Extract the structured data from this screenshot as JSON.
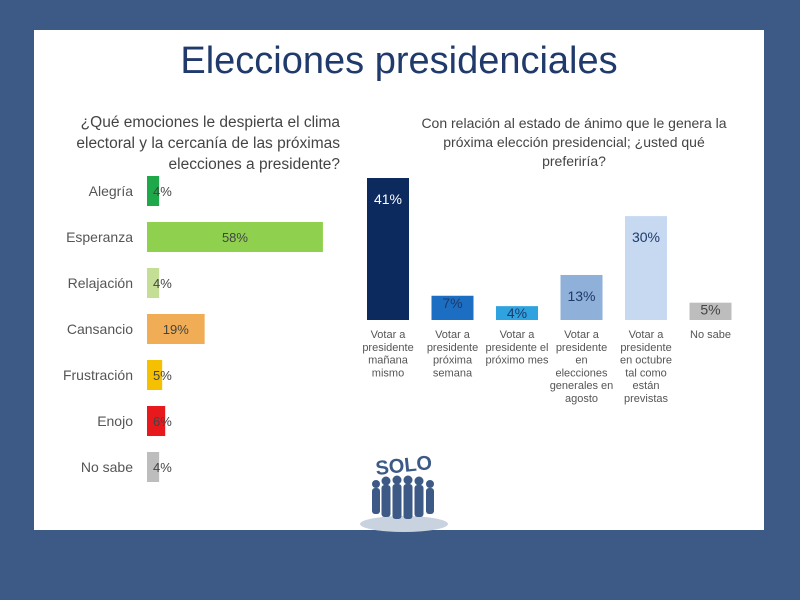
{
  "title": "Elecciones presidenciales",
  "chart_data": [
    {
      "type": "bar",
      "orientation": "horizontal",
      "title": "¿Qué emociones le despierta el clima electoral y la cercanía de las próximas elecciones a presidente?",
      "categories": [
        "Alegría",
        "Esperanza",
        "Relajación",
        "Cansancio",
        "Frustración",
        "Enojo",
        "No sabe"
      ],
      "values": [
        4,
        58,
        4,
        19,
        5,
        6,
        4
      ],
      "labels": [
        "4%",
        "58%",
        "4%",
        "19%",
        "5%",
        "6%",
        "4%"
      ],
      "colors": [
        "#1ea84a",
        "#8fd14f",
        "#c4de95",
        "#f0ad55",
        "#f5c000",
        "#e8191c",
        "#bdbdbd"
      ],
      "xlim": [
        0,
        60
      ],
      "grid": false
    },
    {
      "type": "bar",
      "orientation": "vertical",
      "title": "Con relación al estado de ánimo que le genera la próxima elección  presidencial; ¿usted qué preferiría?",
      "categories": [
        "Votar a presidente mañana mismo",
        "Votar a presidente próxima semana",
        "Votar a presidente el próximo mes",
        "Votar a presidente en elecciones generales en agosto",
        "Votar a presidente en octubre tal como están previstas",
        "No sabe"
      ],
      "category_lines": [
        [
          "Votar a",
          "presidente",
          "mañana",
          "mismo"
        ],
        [
          "Votar a",
          "presidente",
          "próxima",
          "semana"
        ],
        [
          "Votar a",
          "presidente el",
          "próximo mes"
        ],
        [
          "Votar a",
          "presidente",
          "en",
          "elecciones",
          "generales en",
          "agosto"
        ],
        [
          "Votar a",
          "presidente",
          "en octubre",
          "tal como",
          "están",
          "previstas"
        ],
        [
          "No sabe"
        ]
      ],
      "values": [
        41,
        7,
        4,
        13,
        30,
        5
      ],
      "labels": [
        "41%",
        "7%",
        "4%",
        "13%",
        "30%",
        "5%"
      ],
      "colors": [
        "#0d2a5e",
        "#1b6ec2",
        "#2ea3e0",
        "#8fb0d9",
        "#c6d9f1",
        "#bdbdbd"
      ],
      "label_colors": [
        "#ffffff",
        "#1f3a6b",
        "#1f3a6b",
        "#1f3a6b",
        "#1f3a6b",
        "#444444"
      ],
      "ylim": [
        0,
        41
      ],
      "grid": false
    }
  ],
  "logo": {
    "text": "SOLO",
    "icon": "crowd-silhouette-icon",
    "color": "#3c5a85"
  }
}
